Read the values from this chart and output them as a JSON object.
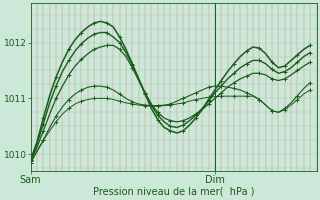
{
  "background_color": "#cce8d8",
  "grid_color_v": "#d09090",
  "grid_color_h": "#aaccbb",
  "line_color": "#1a5c1a",
  "xlabel": "Pression niveau de la mer(  hPa )",
  "ylim": [
    1009.7,
    1012.7
  ],
  "xlim": [
    0,
    45
  ],
  "dim_x": 29,
  "yticks": [
    1010,
    1011,
    1012
  ],
  "xtick_labels": [
    "Sam",
    "Dim"
  ],
  "xtick_positions": [
    0,
    29
  ],
  "series": [
    {
      "x": [
        0,
        1,
        2,
        3,
        4,
        5,
        6,
        7,
        8,
        9,
        10,
        11,
        12,
        13,
        14,
        15,
        16,
        17,
        18,
        19,
        20,
        21,
        22,
        23,
        24,
        25,
        26,
        27,
        28,
        29,
        30,
        31,
        32,
        33,
        34,
        35,
        36,
        37,
        38,
        39,
        40,
        41,
        42,
        43,
        44
      ],
      "y": [
        1009.85,
        1010.05,
        1010.25,
        1010.42,
        1010.58,
        1010.72,
        1010.82,
        1010.9,
        1010.95,
        1010.98,
        1011.0,
        1011.0,
        1011.0,
        1010.98,
        1010.95,
        1010.92,
        1010.9,
        1010.88,
        1010.87,
        1010.86,
        1010.86,
        1010.87,
        1010.88,
        1010.9,
        1010.92,
        1010.95,
        1010.98,
        1011.0,
        1011.02,
        1011.03,
        1011.04,
        1011.04,
        1011.04,
        1011.04,
        1011.04,
        1011.04,
        1010.98,
        1010.88,
        1010.78,
        1010.75,
        1010.8,
        1010.88,
        1010.98,
        1011.08,
        1011.15
      ]
    },
    {
      "x": [
        0,
        1,
        2,
        3,
        4,
        5,
        6,
        7,
        8,
        9,
        10,
        11,
        12,
        13,
        14,
        15,
        16,
        17,
        18,
        19,
        20,
        21,
        22,
        23,
        24,
        25,
        26,
        27,
        28,
        29,
        30,
        31,
        32,
        33,
        34,
        35,
        36,
        37,
        38,
        39,
        40,
        41,
        42,
        43,
        44
      ],
      "y": [
        1009.85,
        1010.05,
        1010.25,
        1010.48,
        1010.68,
        1010.85,
        1010.98,
        1011.08,
        1011.15,
        1011.2,
        1011.22,
        1011.22,
        1011.2,
        1011.15,
        1011.08,
        1011.0,
        1010.94,
        1010.9,
        1010.88,
        1010.87,
        1010.87,
        1010.88,
        1010.9,
        1010.95,
        1011.0,
        1011.05,
        1011.1,
        1011.15,
        1011.2,
        1011.22,
        1011.22,
        1011.2,
        1011.18,
        1011.15,
        1011.1,
        1011.05,
        1010.98,
        1010.88,
        1010.78,
        1010.75,
        1010.82,
        1010.92,
        1011.05,
        1011.18,
        1011.28
      ]
    },
    {
      "x": [
        0,
        1,
        2,
        3,
        4,
        5,
        6,
        7,
        8,
        9,
        10,
        11,
        12,
        13,
        14,
        15,
        16,
        17,
        18,
        19,
        20,
        21,
        22,
        23,
        24,
        25,
        26,
        27,
        28,
        29,
        30,
        31,
        32,
        33,
        34,
        35,
        36,
        37,
        38,
        39,
        40,
        41,
        42,
        43,
        44
      ],
      "y": [
        1009.88,
        1010.12,
        1010.42,
        1010.72,
        1011.0,
        1011.22,
        1011.42,
        1011.58,
        1011.7,
        1011.8,
        1011.88,
        1011.92,
        1011.95,
        1011.95,
        1011.88,
        1011.75,
        1011.55,
        1011.32,
        1011.1,
        1010.9,
        1010.75,
        1010.65,
        1010.6,
        1010.58,
        1010.6,
        1010.65,
        1010.72,
        1010.8,
        1010.9,
        1011.0,
        1011.1,
        1011.2,
        1011.28,
        1011.35,
        1011.4,
        1011.45,
        1011.45,
        1011.42,
        1011.35,
        1011.32,
        1011.35,
        1011.42,
        1011.5,
        1011.58,
        1011.65
      ]
    },
    {
      "x": [
        0,
        1,
        2,
        3,
        4,
        5,
        6,
        7,
        8,
        9,
        10,
        11,
        12,
        13,
        14,
        15,
        16,
        17,
        18,
        19,
        20,
        21,
        22,
        23,
        24,
        25,
        26,
        27,
        28,
        29,
        30,
        31,
        32,
        33,
        34,
        35,
        36,
        37,
        38,
        39,
        40,
        41,
        42,
        43,
        44
      ],
      "y": [
        1009.9,
        1010.18,
        1010.55,
        1010.92,
        1011.22,
        1011.48,
        1011.68,
        1011.85,
        1011.98,
        1012.08,
        1012.15,
        1012.18,
        1012.18,
        1012.1,
        1012.0,
        1011.82,
        1011.6,
        1011.35,
        1011.1,
        1010.88,
        1010.7,
        1010.58,
        1010.5,
        1010.48,
        1010.52,
        1010.6,
        1010.7,
        1010.82,
        1010.95,
        1011.1,
        1011.22,
        1011.35,
        1011.45,
        1011.55,
        1011.62,
        1011.68,
        1011.68,
        1011.62,
        1011.52,
        1011.45,
        1011.48,
        1011.55,
        1011.65,
        1011.75,
        1011.82
      ]
    },
    {
      "x": [
        0,
        1,
        2,
        3,
        4,
        5,
        6,
        7,
        8,
        9,
        10,
        11,
        12,
        13,
        14,
        15,
        16,
        17,
        18,
        19,
        20,
        21,
        22,
        23,
        24,
        25,
        26,
        27,
        28,
        29,
        30,
        31,
        32,
        33,
        34,
        35,
        36,
        37,
        38,
        39,
        40,
        41,
        42,
        43,
        44
      ],
      "y": [
        1009.9,
        1010.22,
        1010.65,
        1011.05,
        1011.38,
        1011.65,
        1011.88,
        1012.05,
        1012.18,
        1012.28,
        1012.35,
        1012.38,
        1012.35,
        1012.28,
        1012.1,
        1011.88,
        1011.62,
        1011.35,
        1011.08,
        1010.82,
        1010.62,
        1010.48,
        1010.42,
        1010.38,
        1010.42,
        1010.52,
        1010.65,
        1010.8,
        1010.98,
        1011.15,
        1011.32,
        1011.48,
        1011.62,
        1011.75,
        1011.85,
        1011.92,
        1011.9,
        1011.8,
        1011.65,
        1011.55,
        1011.58,
        1011.68,
        1011.78,
        1011.88,
        1011.95
      ]
    }
  ]
}
